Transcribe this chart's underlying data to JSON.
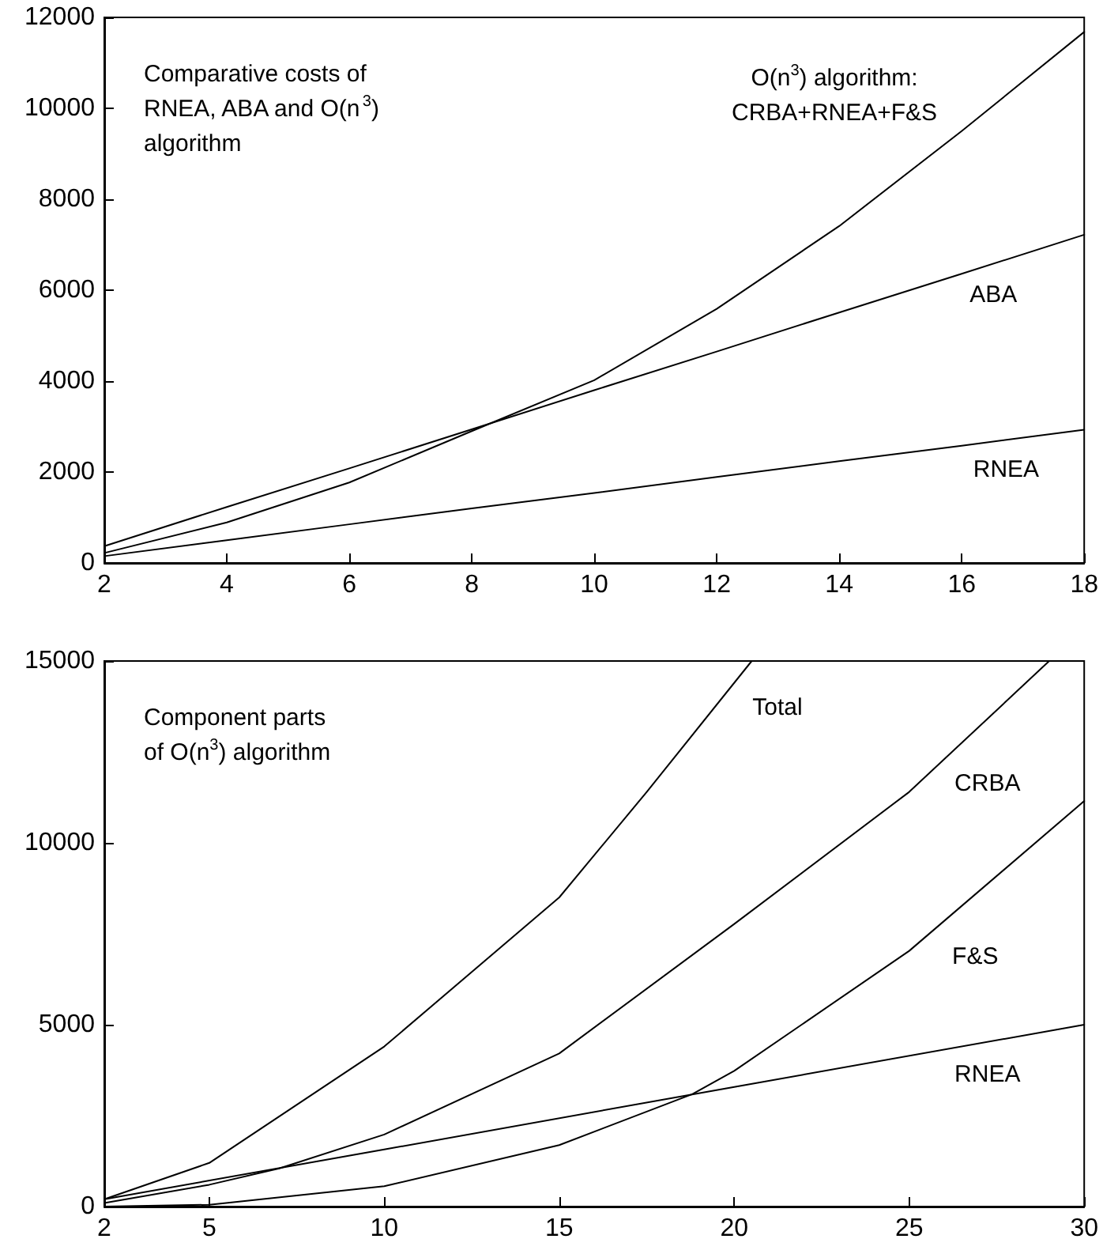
{
  "chart_data": [
    {
      "type": "line",
      "title": "Comparative costs of\nRNEA, ABA and O(n$^{3}$)\nalgorithm",
      "x": [
        2,
        4,
        6,
        8,
        10,
        12,
        14,
        16,
        18
      ],
      "xlim": [
        2,
        18
      ],
      "xticks": [
        2,
        4,
        6,
        8,
        10,
        12,
        14,
        16,
        18
      ],
      "ylim": [
        0,
        12000
      ],
      "yticks": [
        0,
        2000,
        4000,
        6000,
        8000,
        10000,
        12000
      ],
      "marker": "none",
      "line_style": "solid",
      "grid": false,
      "series": [
        {
          "name": "RNEA",
          "color": "#000000",
          "values": [
            150,
            500,
            850,
            1200,
            1540,
            1890,
            2240,
            2580,
            2930
          ]
        },
        {
          "name": "ABA",
          "color": "#000000",
          "values": [
            370,
            1230,
            2080,
            2940,
            3800,
            4650,
            5510,
            6360,
            7220
          ]
        },
        {
          "name": "O(n$^{3}$) algorithm:\nCRBA+RNEA+F&S",
          "color": "#000000",
          "values": [
            220,
            890,
            1770,
            2900,
            4020,
            5590,
            7410,
            9500,
            11680
          ]
        }
      ]
    },
    {
      "type": "line",
      "title": "Component parts\nof O(n$^{3}$) algorithm",
      "xlim": [
        2,
        30
      ],
      "xticks": [
        2,
        5,
        10,
        15,
        20,
        25,
        30
      ],
      "ylim": [
        0,
        15000
      ],
      "yticks": [
        0,
        5000,
        10000,
        15000
      ],
      "marker": "none",
      "line_style": "solid",
      "grid": false,
      "series": [
        {
          "name": "RNEA",
          "color": "#000000",
          "x": [
            2,
            10,
            20,
            30
          ],
          "values": [
            200,
            1570,
            3290,
            5000
          ]
        },
        {
          "name": "F&S",
          "color": "#000000",
          "x": [
            2,
            5,
            10,
            15,
            18.8,
            20,
            25,
            30
          ],
          "values": [
            0,
            50,
            560,
            1690,
            3090,
            3730,
            7030,
            11150
          ]
        },
        {
          "name": "CRBA",
          "color": "#000000",
          "x": [
            2,
            5,
            7,
            10,
            15,
            20,
            25,
            29
          ],
          "values": [
            100,
            600,
            1050,
            1980,
            4210,
            7770,
            11400,
            15000
          ]
        },
        {
          "name": "Total",
          "color": "#000000",
          "x": [
            2,
            5,
            10,
            15,
            17.5,
            20.5
          ],
          "values": [
            200,
            1200,
            4400,
            8500,
            11400,
            15000
          ]
        }
      ]
    }
  ]
}
